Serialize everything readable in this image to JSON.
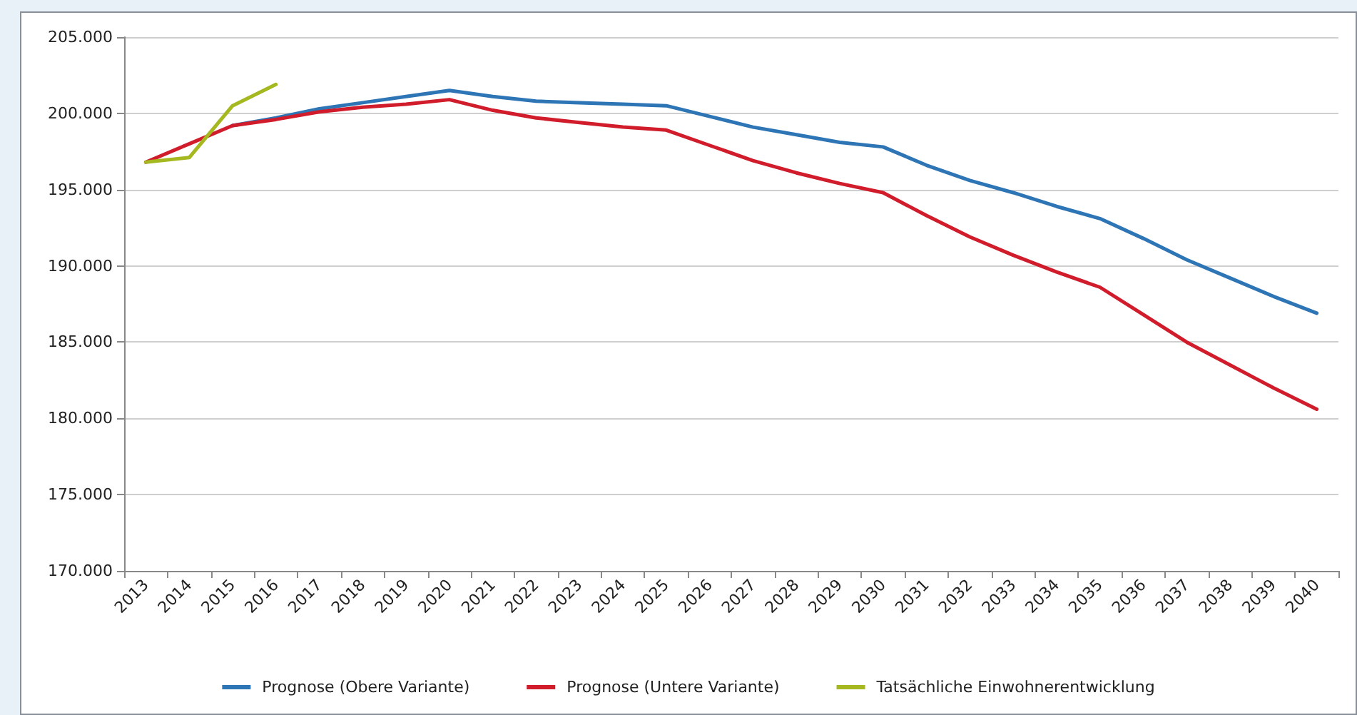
{
  "chart_data": {
    "type": "line",
    "categories": [
      "2013",
      "2014",
      "2015",
      "2016",
      "2017",
      "2018",
      "2019",
      "2020",
      "2021",
      "2022",
      "2023",
      "2024",
      "2025",
      "2026",
      "2027",
      "2028",
      "2029",
      "2030",
      "2031",
      "2032",
      "2033",
      "2034",
      "2035",
      "2036",
      "2037",
      "2038",
      "2039",
      "2040"
    ],
    "series": [
      {
        "name": "Prognose (Obere Variante)",
        "color": "#2e75b6",
        "values": [
          null,
          null,
          199200,
          199700,
          200300,
          200700,
          201100,
          201500,
          201100,
          200800,
          200700,
          200600,
          200500,
          199800,
          199100,
          198600,
          198100,
          197800,
          196600,
          195600,
          194800,
          193900,
          193100,
          191800,
          190400,
          189200,
          188000,
          186900
        ]
      },
      {
        "name": "Prognose (Untere Variante)",
        "color": "#d01c2b",
        "values": [
          196800,
          198000,
          199200,
          199600,
          200100,
          200400,
          200600,
          200900,
          200200,
          199700,
          199400,
          199100,
          198900,
          197900,
          196900,
          196100,
          195400,
          194800,
          193300,
          191900,
          190700,
          189600,
          188600,
          186800,
          185000,
          183500,
          182000,
          180600
        ]
      },
      {
        "name": "Tatsächliche Einwohnerentwicklung",
        "color": "#a5b820",
        "values": [
          196800,
          197100,
          200500,
          201900,
          null,
          null,
          null,
          null,
          null,
          null,
          null,
          null,
          null,
          null,
          null,
          null,
          null,
          null,
          null,
          null,
          null,
          null,
          null,
          null,
          null,
          null,
          null,
          null
        ]
      }
    ],
    "ylim": [
      170000,
      205000
    ],
    "yticks": [
      {
        "value": 170000,
        "label": "170.000"
      },
      {
        "value": 175000,
        "label": "175.000"
      },
      {
        "value": 180000,
        "label": "180.000"
      },
      {
        "value": 185000,
        "label": "185.000"
      },
      {
        "value": 190000,
        "label": "190.000"
      },
      {
        "value": 195000,
        "label": "195.000"
      },
      {
        "value": 200000,
        "label": "200.000"
      },
      {
        "value": 205000,
        "label": "205.000"
      }
    ],
    "grid": "y",
    "legend": "bottom",
    "marker": "none",
    "line_style": "solid"
  }
}
